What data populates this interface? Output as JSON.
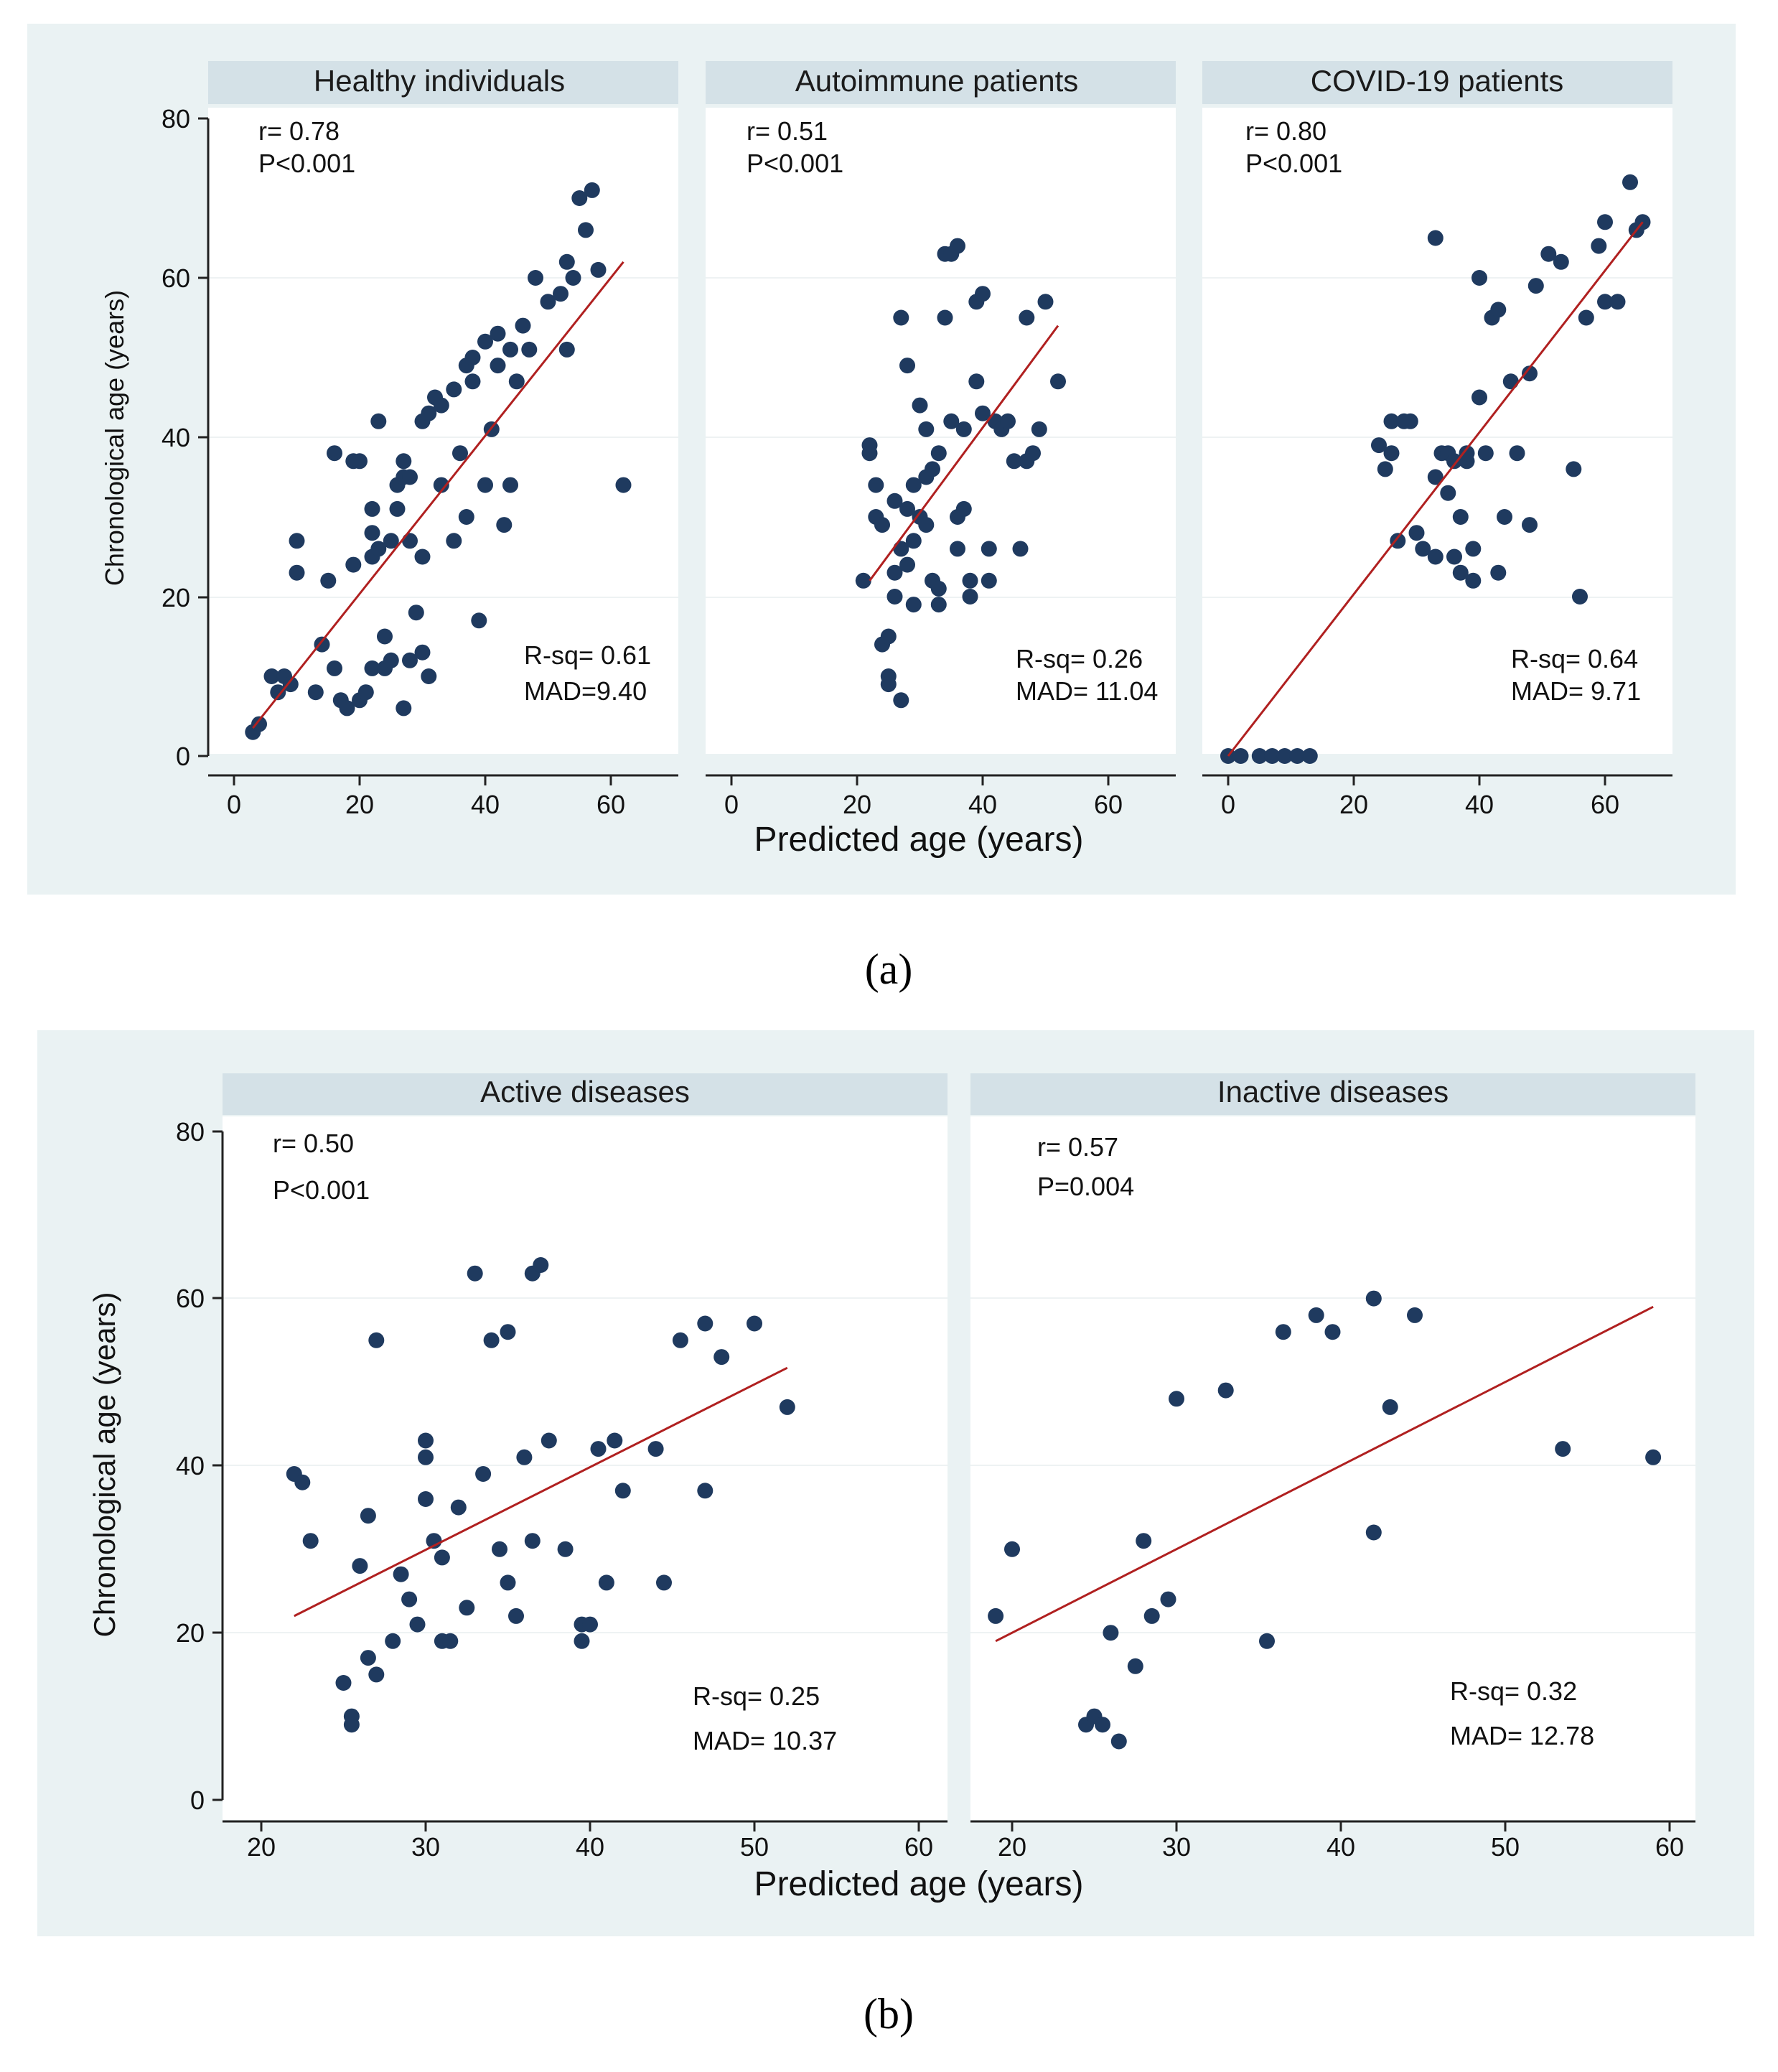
{
  "figure_a": {
    "caption": "(a)",
    "x_axis_title": "Predicted age (years)",
    "y_axis_title": "Chronological age (years)",
    "x_ticks": [
      "0",
      "20",
      "40",
      "60"
    ],
    "y_ticks": [
      "0",
      "20",
      "40",
      "60",
      "80"
    ],
    "panels": [
      {
        "title": "Healthy individuals",
        "r": "r= 0.78",
        "p": "P<0.001",
        "rsq": "R-sq= 0.61",
        "mad": "MAD=9.40"
      },
      {
        "title": "Autoimmune patients",
        "r": "r= 0.51",
        "p": "P<0.001",
        "rsq": "R-sq= 0.26",
        "mad": "MAD= 11.04"
      },
      {
        "title": "COVID-19 patients",
        "r": "r= 0.80",
        "p": "P<0.001",
        "rsq": "R-sq= 0.64",
        "mad": "MAD= 9.71"
      }
    ]
  },
  "figure_b": {
    "caption": "(b)",
    "x_axis_title": "Predicted age (years)",
    "y_axis_title": "Chronological age (years)",
    "x_ticks": [
      "20",
      "30",
      "40",
      "50",
      "60"
    ],
    "y_ticks": [
      "0",
      "20",
      "40",
      "60",
      "80"
    ],
    "panels": [
      {
        "title": "Active diseases",
        "r": "r= 0.50",
        "p": "P<0.001",
        "rsq": "R-sq= 0.25",
        "mad": "MAD= 10.37"
      },
      {
        "title": "Inactive diseases",
        "r": "r= 0.57",
        "p": "P=0.004",
        "rsq": "R-sq= 0.32",
        "mad": "MAD= 12.78"
      }
    ]
  },
  "colors": {
    "points": "#1f3a5f",
    "fit_line": "#b02020",
    "background": "#eaf2f3",
    "strip": "#d4e1e7"
  },
  "chart_data": [
    {
      "type": "scatter",
      "title": "Healthy individuals",
      "xlabel": "Predicted age (years)",
      "ylabel": "Chronological age (years)",
      "xlim": [
        -3,
        72
      ],
      "ylim": [
        -3,
        80
      ],
      "fit": [
        [
          3,
          3.5
        ],
        [
          62,
          62
        ]
      ],
      "x": [
        3,
        4,
        6,
        7,
        8,
        9,
        10,
        10,
        13,
        14,
        15,
        16,
        16,
        17,
        18,
        19,
        19,
        20,
        20,
        21,
        22,
        22,
        22,
        22,
        23,
        23,
        24,
        24,
        25,
        25,
        26,
        26,
        27,
        27,
        27,
        28,
        28,
        28,
        29,
        30,
        30,
        30,
        31,
        31,
        32,
        33,
        33,
        35,
        35,
        36,
        37,
        37,
        38,
        38,
        39,
        40,
        40,
        41,
        42,
        42,
        43,
        44,
        44,
        45,
        46,
        47,
        48,
        50,
        52,
        53,
        53,
        54,
        55,
        56,
        57,
        58,
        62
      ],
      "y": [
        3,
        4,
        10,
        8,
        10,
        9,
        23,
        27,
        8,
        14,
        22,
        11,
        38,
        7,
        6,
        24,
        37,
        7,
        37,
        8,
        11,
        25,
        28,
        31,
        26,
        42,
        11,
        15,
        12,
        27,
        31,
        34,
        35,
        6,
        37,
        12,
        27,
        35,
        18,
        25,
        42,
        13,
        10,
        43,
        45,
        34,
        44,
        27,
        46,
        38,
        49,
        30,
        47,
        50,
        17,
        34,
        52,
        41,
        53,
        49,
        29,
        51,
        34,
        47,
        54,
        51,
        60,
        57,
        58,
        62,
        51,
        60,
        70,
        66,
        71,
        61,
        34
      ]
    },
    {
      "type": "scatter",
      "title": "Autoimmune patients",
      "xlabel": "Predicted age (years)",
      "ylabel": "Chronological age (years)",
      "xlim": [
        -3,
        72
      ],
      "ylim": [
        -3,
        80
      ],
      "fit": [
        [
          22,
          22
        ],
        [
          52,
          54
        ]
      ],
      "x": [
        21,
        22,
        22,
        23,
        23,
        24,
        24,
        25,
        25,
        25,
        26,
        26,
        26,
        27,
        27,
        27,
        28,
        28,
        28,
        29,
        29,
        29,
        30,
        30,
        31,
        31,
        31,
        32,
        32,
        33,
        33,
        33,
        34,
        34,
        35,
        35,
        36,
        36,
        36,
        37,
        37,
        38,
        38,
        39,
        39,
        40,
        40,
        41,
        41,
        42,
        43,
        44,
        45,
        46,
        47,
        47,
        48,
        49,
        50,
        52
      ],
      "y": [
        22,
        38,
        39,
        30,
        34,
        29,
        14,
        15,
        10,
        9,
        20,
        23,
        32,
        55,
        7,
        26,
        31,
        24,
        49,
        27,
        34,
        19,
        30,
        44,
        29,
        35,
        41,
        36,
        22,
        21,
        19,
        38,
        55,
        63,
        42,
        63,
        26,
        30,
        64,
        41,
        31,
        20,
        22,
        57,
        47,
        58,
        43,
        22,
        26,
        42,
        41,
        42,
        37,
        26,
        55,
        37,
        38,
        41,
        57,
        47
      ]
    },
    {
      "type": "scatter",
      "title": "COVID-19 patients",
      "xlabel": "Predicted age (years)",
      "ylabel": "Chronological age (years)",
      "xlim": [
        -3,
        72
      ],
      "ylim": [
        -3,
        80
      ],
      "fit": [
        [
          0,
          0
        ],
        [
          66,
          67
        ]
      ],
      "x": [
        0,
        2,
        5,
        7,
        9,
        11,
        13,
        24,
        25,
        26,
        26,
        27,
        28,
        29,
        30,
        31,
        33,
        33,
        33,
        34,
        35,
        35,
        36,
        36,
        37,
        37,
        38,
        38,
        39,
        39,
        40,
        40,
        41,
        42,
        43,
        43,
        44,
        45,
        46,
        48,
        48,
        49,
        51,
        53,
        55,
        56,
        57,
        59,
        60,
        60,
        62,
        64,
        65,
        66
      ],
      "y": [
        0,
        0,
        0,
        0,
        0,
        0,
        0,
        39,
        36,
        38,
        42,
        27,
        42,
        42,
        28,
        26,
        35,
        25,
        65,
        38,
        33,
        38,
        25,
        37,
        23,
        30,
        37,
        38,
        22,
        26,
        45,
        60,
        38,
        55,
        56,
        23,
        30,
        47,
        38,
        29,
        48,
        59,
        63,
        62,
        36,
        20,
        55,
        64,
        57,
        67,
        57,
        72,
        66,
        67
      ]
    },
    {
      "type": "scatter",
      "title": "Active diseases",
      "xlabel": "Predicted age (years)",
      "ylabel": "Chronological age (years)",
      "xlim": [
        18,
        62
      ],
      "ylim": [
        -3,
        82
      ],
      "fit": [
        [
          22,
          22
        ],
        [
          52,
          51.7
        ]
      ],
      "x": [
        22,
        22.5,
        23,
        25,
        25.5,
        25.5,
        26,
        26.5,
        26.5,
        27,
        27,
        28,
        28.5,
        29,
        29.5,
        30,
        30,
        30,
        30.5,
        31,
        31,
        31.5,
        32,
        32.5,
        33,
        33.5,
        34,
        34.5,
        35,
        35,
        35.5,
        36,
        36.5,
        36.5,
        37,
        37.5,
        38.5,
        39.5,
        39.5,
        40,
        40.5,
        41,
        41.5,
        42,
        44,
        44.5,
        45.5,
        47,
        47,
        48,
        50,
        52
      ],
      "y": [
        39,
        38,
        31,
        14,
        10,
        9,
        28,
        17,
        34,
        15,
        55,
        19,
        27,
        24,
        21,
        43,
        41,
        36,
        31,
        29,
        19,
        19,
        35,
        23,
        63,
        39,
        55,
        30,
        56,
        26,
        22,
        41,
        31,
        63,
        64,
        43,
        30,
        21,
        19,
        21,
        42,
        26,
        43,
        37,
        42,
        26,
        55,
        37,
        57,
        53,
        57,
        47
      ]
    },
    {
      "type": "scatter",
      "title": "Inactive diseases",
      "xlabel": "Predicted age (years)",
      "ylabel": "Chronological age (years)",
      "xlim": [
        18,
        62
      ],
      "ylim": [
        -3,
        82
      ],
      "fit": [
        [
          19,
          19
        ],
        [
          59,
          59
        ]
      ],
      "x": [
        19,
        20,
        24.5,
        25,
        25.5,
        26,
        26.5,
        27.5,
        28,
        28.5,
        29.5,
        30,
        33,
        35.5,
        36.5,
        38.5,
        39.5,
        42,
        42,
        43,
        44.5,
        53.5,
        59
      ],
      "y": [
        22,
        30,
        9,
        10,
        9,
        20,
        7,
        16,
        31,
        22,
        24,
        48,
        49,
        19,
        56,
        58,
        56,
        60,
        32,
        47,
        58,
        42,
        41
      ]
    }
  ]
}
